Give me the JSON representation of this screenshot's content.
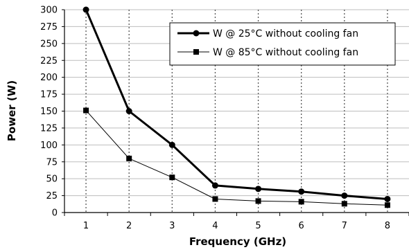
{
  "chart_data": {
    "type": "line",
    "title": "",
    "xlabel": "Frequency (GHz)",
    "ylabel": "Power (W)",
    "x": [
      1,
      2,
      3,
      4,
      5,
      6,
      7,
      8
    ],
    "xlim": [
      0.5,
      8.5
    ],
    "ylim": [
      0,
      300
    ],
    "y_ticks": [
      0,
      25,
      50,
      75,
      100,
      125,
      150,
      175,
      200,
      225,
      250,
      275,
      300
    ],
    "x_ticks": [
      1,
      2,
      3,
      4,
      5,
      6,
      7,
      8
    ],
    "grid": true,
    "legend_position": "top-right",
    "series": [
      {
        "name": "W @ 25°C without cooling fan",
        "values": [
          300,
          150,
          100,
          40,
          35,
          31,
          25,
          20
        ],
        "color": "#000000",
        "line_style": "thick",
        "marker": "circle"
      },
      {
        "name": "W @ 85°C without cooling fan",
        "values": [
          151,
          80,
          52,
          20,
          17,
          16,
          13,
          11
        ],
        "color": "#000000",
        "line_style": "thin",
        "marker": "square"
      }
    ]
  }
}
